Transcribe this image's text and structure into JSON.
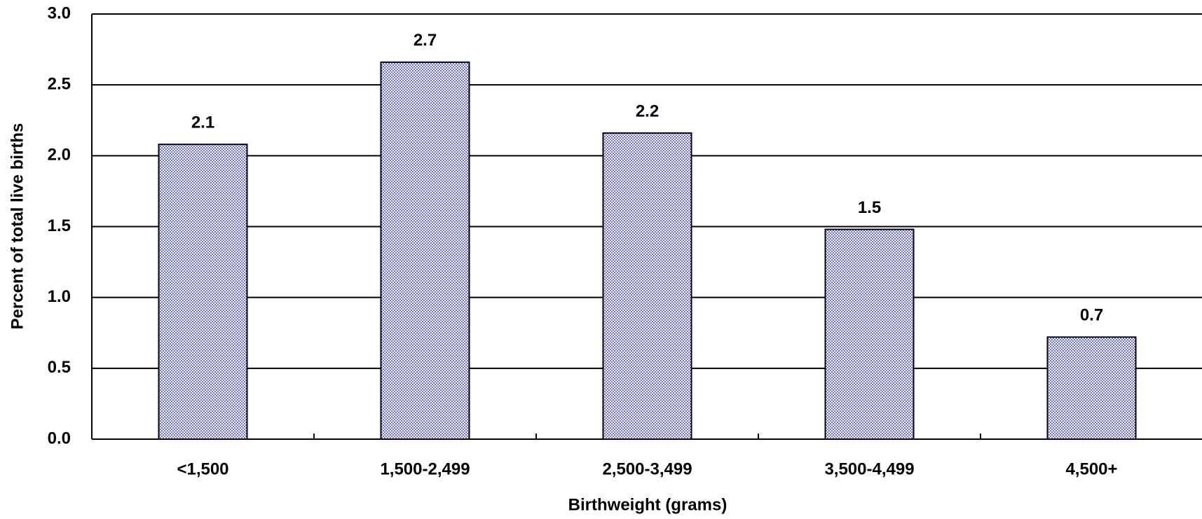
{
  "chart_data": {
    "type": "bar",
    "x_label": "Birthweight (grams)",
    "y_label": "Percent of total live births",
    "categories": [
      "<1,500",
      "1,500-2,499",
      "2,500-3,499",
      "3,500-4,499",
      "4,500+"
    ],
    "values": [
      2.08,
      2.66,
      2.16,
      1.48,
      0.72
    ],
    "value_labels": [
      "2.1",
      "2.7",
      "2.2",
      "1.5",
      "0.7"
    ],
    "color": "#6f6ff2",
    "ylim": [
      0,
      3
    ],
    "yticks": [
      {
        "value": 0,
        "label": "0.0"
      },
      0.5,
      {
        "value": 1,
        "label": "1.0"
      },
      1.5,
      {
        "value": 2,
        "label": "2.0"
      },
      2.5,
      {
        "value": 3,
        "label": "3.0"
      }
    ],
    "grid": true
  }
}
